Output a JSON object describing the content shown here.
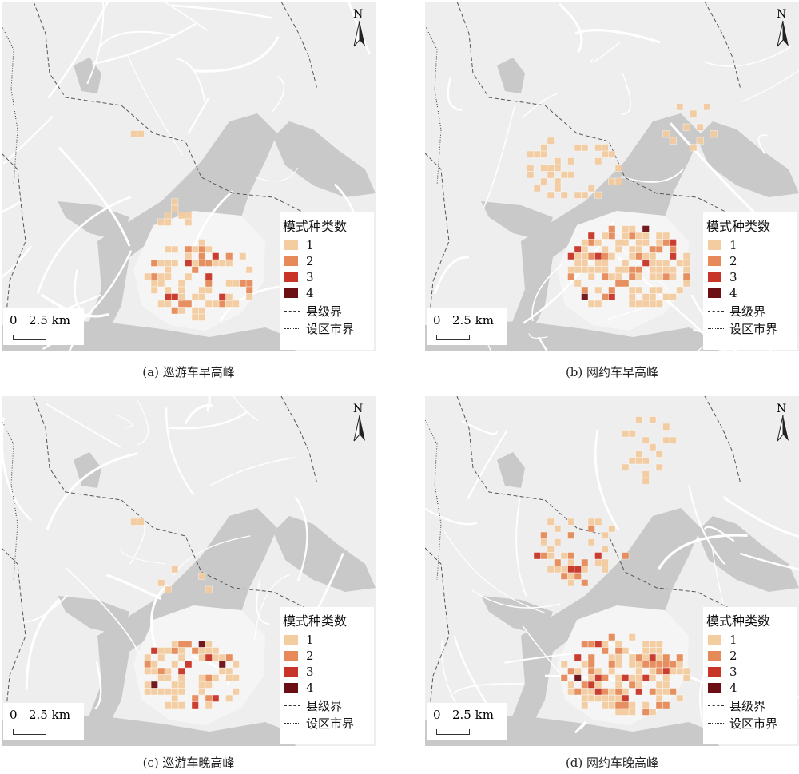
{
  "legend": {
    "title": "模式种类数",
    "items": [
      {
        "label": "1",
        "color": "#f3cca0"
      },
      {
        "label": "2",
        "color": "#e68a5a"
      },
      {
        "label": "3",
        "color": "#c83427"
      },
      {
        "label": "4",
        "color": "#6b0f15"
      }
    ],
    "county_boundary": "县级界",
    "city_boundary": "设区市界"
  },
  "scale": {
    "zero": "0",
    "distance": "2.5 km"
  },
  "north_label": "N",
  "panels": [
    {
      "caption": "(a) 巡游车早高峰"
    },
    {
      "caption": "(b) 网约车早高峰"
    },
    {
      "caption": "(c) 巡游车晚高峰"
    },
    {
      "caption": "(d) 网约车晚高峰"
    }
  ]
}
